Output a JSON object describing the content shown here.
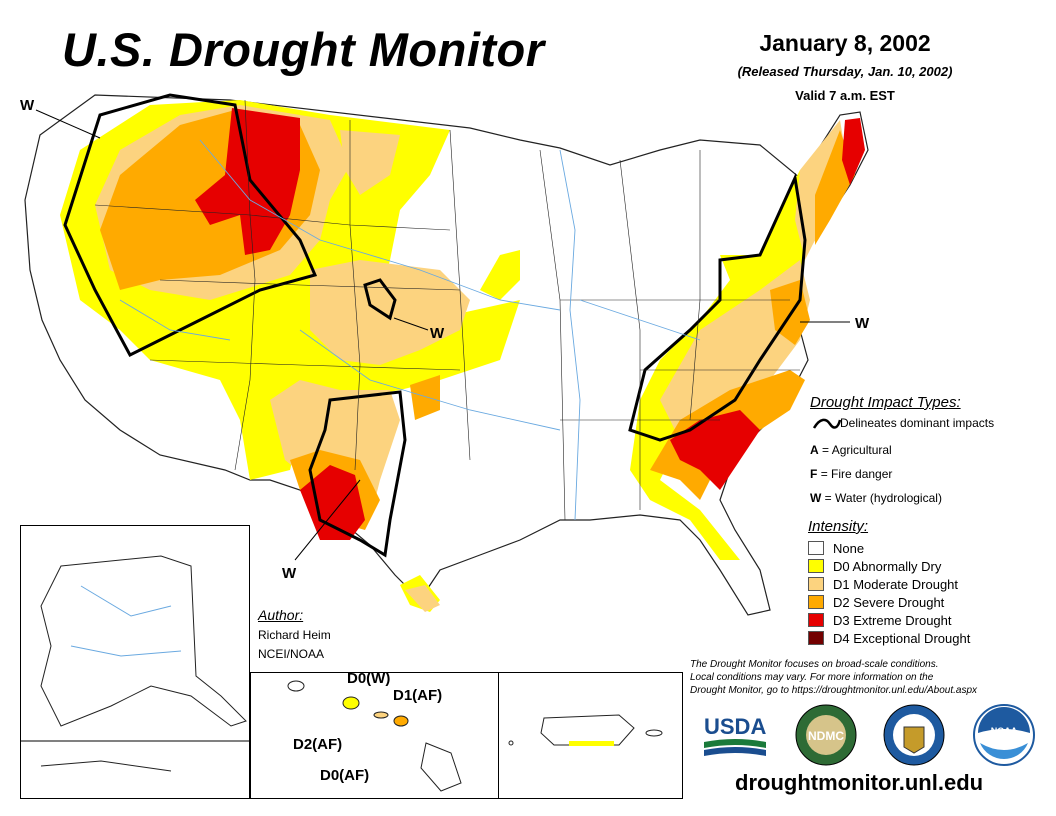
{
  "header": {
    "title": "U.S. Drought Monitor",
    "date": "January 8, 2002",
    "released": "(Released Thursday, Jan. 10, 2002)",
    "valid": "Valid 7 a.m. EST"
  },
  "impact_types": {
    "heading": "Drought Impact Types:",
    "delineates": "Delineates dominant impacts",
    "items": [
      {
        "code": "A",
        "label": "= Agricultural"
      },
      {
        "code": "F",
        "label": "= Fire danger"
      },
      {
        "code": "W",
        "label": "= Water (hydrological)"
      }
    ]
  },
  "intensity": {
    "heading": "Intensity:",
    "items": [
      {
        "label": "None",
        "color": "#ffffff"
      },
      {
        "label": "D0 Abnormally Dry",
        "color": "#ffff00"
      },
      {
        "label": "D1 Moderate Drought",
        "color": "#fcd37f"
      },
      {
        "label": "D2 Severe Drought",
        "color": "#ffaa00"
      },
      {
        "label": "D3 Extreme Drought",
        "color": "#e60000"
      },
      {
        "label": "D4 Exceptional Drought",
        "color": "#730000"
      }
    ]
  },
  "author": {
    "heading": "Author:",
    "name": "Richard Heim",
    "org": "NCEI/NOAA"
  },
  "note": {
    "line1": "The Drought Monitor focuses on broad-scale conditions.",
    "line2": "Local conditions may vary. For more information on the",
    "line3": "Drought Monitor, go to https://droughtmonitor.unl.edu/About.aspx"
  },
  "map_labels": {
    "w_northwest": "W",
    "w_plains": "W",
    "w_east": "W",
    "w_texas": "W",
    "hawaii_d0w": "D0(W)",
    "hawaii_d1af": "D1(AF)",
    "hawaii_d2af": "D2(AF)",
    "hawaii_d0af": "D0(AF)"
  },
  "logos": {
    "usda": "USDA",
    "ndmc": "NDMC",
    "noaa": "NOAA"
  },
  "footer": {
    "url": "droughtmonitor.unl.edu"
  }
}
